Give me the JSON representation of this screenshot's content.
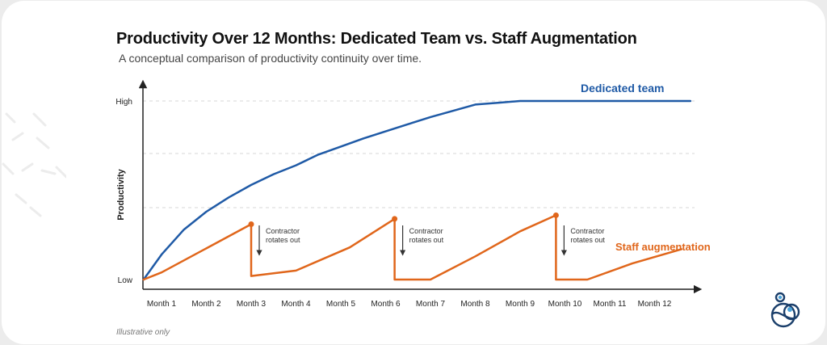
{
  "title": "Productivity Over 12 Months: Dedicated Team vs. Staff Augmentation",
  "subtitle": "A conceptual comparison of productivity continuity over time.",
  "note": "Illustrative only",
  "chart_data": {
    "type": "line",
    "title": "Productivity Over 12 Months: Dedicated Team vs. Staff Augmentation",
    "subtitle": "A conceptual comparison of productivity continuity over time.",
    "xlabel": "",
    "ylabel": "Productivity",
    "categories": [
      "Month 1",
      "Month 2",
      "Month 3",
      "Month 4",
      "Month 5",
      "Month 6",
      "Month 7",
      "Month 8",
      "Month 9",
      "Month 10",
      "Month 11",
      "Month 12"
    ],
    "ytick_labels": [
      "High",
      "Low"
    ],
    "ylim": [
      0,
      1
    ],
    "grid": "horizontal dashed",
    "series": [
      {
        "name": "Dedicated team",
        "color": "#1f5aa6",
        "points": [
          [
            0.6,
            0.0
          ],
          [
            1.0,
            0.14
          ],
          [
            1.5,
            0.28
          ],
          [
            2.0,
            0.38
          ],
          [
            2.5,
            0.46
          ],
          [
            3.0,
            0.53
          ],
          [
            3.5,
            0.59
          ],
          [
            4.0,
            0.64
          ],
          [
            4.5,
            0.7
          ],
          [
            5.0,
            0.745
          ],
          [
            5.5,
            0.79
          ],
          [
            6.0,
            0.83
          ],
          [
            6.5,
            0.87
          ],
          [
            7.0,
            0.91
          ],
          [
            7.5,
            0.945
          ],
          [
            8.0,
            0.98
          ],
          [
            8.5,
            0.99
          ],
          [
            9.0,
            1.0
          ],
          [
            10.0,
            1.0
          ],
          [
            11.0,
            1.0
          ],
          [
            12.0,
            1.0
          ],
          [
            12.8,
            1.0
          ]
        ]
      },
      {
        "name": "Staff augmentation",
        "color": "#e0661b",
        "points": [
          [
            0.6,
            0.0
          ],
          [
            1.0,
            0.04
          ],
          [
            3.0,
            0.31
          ],
          [
            3.0,
            0.02
          ],
          [
            4.0,
            0.05
          ],
          [
            5.2,
            0.18
          ],
          [
            6.2,
            0.34
          ],
          [
            6.2,
            0.0
          ],
          [
            7.0,
            0.0
          ],
          [
            8.0,
            0.13
          ],
          [
            9.0,
            0.27
          ],
          [
            9.8,
            0.36
          ],
          [
            9.8,
            0.0
          ],
          [
            10.5,
            0.0
          ],
          [
            11.5,
            0.09
          ],
          [
            12.6,
            0.17
          ]
        ],
        "markers": [
          [
            3.0,
            0.31
          ],
          [
            6.2,
            0.34
          ],
          [
            9.8,
            0.36
          ]
        ]
      }
    ],
    "annotations": [
      {
        "text": "Contractor rotates out",
        "lines": [
          "Contractor",
          "rotates out"
        ],
        "x": 3.0
      },
      {
        "text": "Contractor rotates out",
        "lines": [
          "Contractor",
          "rotates out"
        ],
        "x": 6.2
      },
      {
        "text": "Contractor rotates out",
        "lines": [
          "Contractor",
          "rotates out"
        ],
        "x": 9.8
      }
    ]
  }
}
